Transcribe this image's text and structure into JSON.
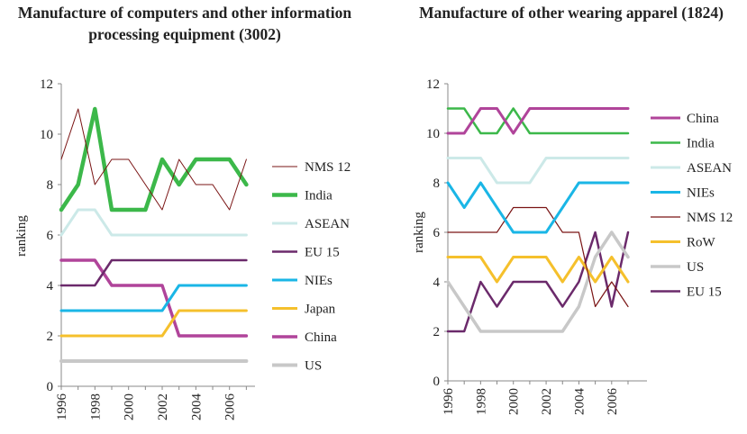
{
  "chart_data": [
    {
      "type": "line",
      "title": "Manufacture of computers and other information processing equipment (3002)",
      "xlabel": "",
      "ylabel": "ranking",
      "ylim": [
        0,
        12
      ],
      "yticks": [
        "0",
        "2",
        "4",
        "6",
        "8",
        "10",
        "12"
      ],
      "xticks": [
        "1996",
        "1998",
        "2000",
        "2002",
        "2004",
        "2006"
      ],
      "x": [
        1996,
        1997,
        1998,
        1999,
        2000,
        2001,
        2002,
        2003,
        2004,
        2005,
        2006,
        2007
      ],
      "legend": "right",
      "series": [
        {
          "name": "NMS 12",
          "color": "#7a1414",
          "width": 1,
          "values": [
            9,
            11,
            8,
            9,
            9,
            8,
            7,
            9,
            8,
            8,
            7,
            9
          ]
        },
        {
          "name": "India",
          "color": "#3cb84a",
          "width": 4.5,
          "values": [
            7,
            8,
            11,
            7,
            7,
            7,
            9,
            8,
            9,
            9,
            9,
            8
          ]
        },
        {
          "name": "ASEAN",
          "color": "#cce9e8",
          "width": 3,
          "values": [
            6,
            7,
            7,
            6,
            6,
            6,
            6,
            6,
            6,
            6,
            6,
            6
          ]
        },
        {
          "name": "EU 15",
          "color": "#6b2a6b",
          "width": 2.5,
          "values": [
            4,
            4,
            4,
            5,
            5,
            5,
            5,
            5,
            5,
            5,
            5,
            5
          ]
        },
        {
          "name": "NIEs",
          "color": "#1ab6e6",
          "width": 3,
          "values": [
            3,
            3,
            3,
            3,
            3,
            3,
            3,
            4,
            4,
            4,
            4,
            4
          ]
        },
        {
          "name": "Japan",
          "color": "#f5c02c",
          "width": 3,
          "values": [
            2,
            2,
            2,
            2,
            2,
            2,
            2,
            3,
            3,
            3,
            3,
            3
          ]
        },
        {
          "name": "China",
          "color": "#b0449a",
          "width": 3.5,
          "values": [
            5,
            5,
            5,
            4,
            4,
            4,
            4,
            2,
            2,
            2,
            2,
            2
          ]
        },
        {
          "name": "US",
          "color": "#c8c8c8",
          "width": 4,
          "values": [
            1,
            1,
            1,
            1,
            1,
            1,
            1,
            1,
            1,
            1,
            1,
            1
          ]
        }
      ]
    },
    {
      "type": "line",
      "title": "Manufacture of other wearing apparel (1824)",
      "xlabel": "",
      "ylabel": "ranking",
      "ylim": [
        0,
        12
      ],
      "yticks": [
        "0",
        "2",
        "4",
        "6",
        "8",
        "10",
        "12"
      ],
      "xticks": [
        "1996",
        "1998",
        "2000",
        "2002",
        "2004",
        "2006"
      ],
      "x": [
        1996,
        1997,
        1998,
        1999,
        2000,
        2001,
        2002,
        2003,
        2004,
        2005,
        2006,
        2007
      ],
      "legend": "right",
      "series": [
        {
          "name": "China",
          "color": "#b0449a",
          "width": 3,
          "values": [
            10,
            10,
            11,
            11,
            10,
            11,
            11,
            11,
            11,
            11,
            11,
            11
          ]
        },
        {
          "name": "India",
          "color": "#3cb84a",
          "width": 2.5,
          "values": [
            11,
            11,
            10,
            10,
            11,
            10,
            10,
            10,
            10,
            10,
            10,
            10
          ]
        },
        {
          "name": "ASEAN",
          "color": "#cce9e8",
          "width": 3,
          "values": [
            9,
            9,
            9,
            8,
            8,
            8,
            9,
            9,
            9,
            9,
            9,
            9
          ]
        },
        {
          "name": "NIEs",
          "color": "#1ab6e6",
          "width": 3,
          "values": [
            8,
            7,
            8,
            7,
            6,
            6,
            6,
            7,
            8,
            8,
            8,
            8
          ]
        },
        {
          "name": "NMS 12",
          "color": "#7a1414",
          "width": 1.2,
          "values": [
            6,
            6,
            6,
            6,
            7,
            7,
            7,
            6,
            6,
            3,
            4,
            3
          ]
        },
        {
          "name": "RoW",
          "color": "#f5c02c",
          "width": 3,
          "values": [
            5,
            5,
            5,
            4,
            5,
            5,
            5,
            4,
            5,
            4,
            5,
            4
          ]
        },
        {
          "name": "US",
          "color": "#c8c8c8",
          "width": 3.5,
          "values": [
            4,
            3,
            2,
            2,
            2,
            2,
            2,
            2,
            3,
            5,
            6,
            5
          ]
        },
        {
          "name": "EU 15",
          "color": "#6b2a6b",
          "width": 2.5,
          "values": [
            2,
            2,
            4,
            3,
            4,
            4,
            4,
            3,
            4,
            6,
            3,
            6
          ]
        }
      ]
    }
  ]
}
